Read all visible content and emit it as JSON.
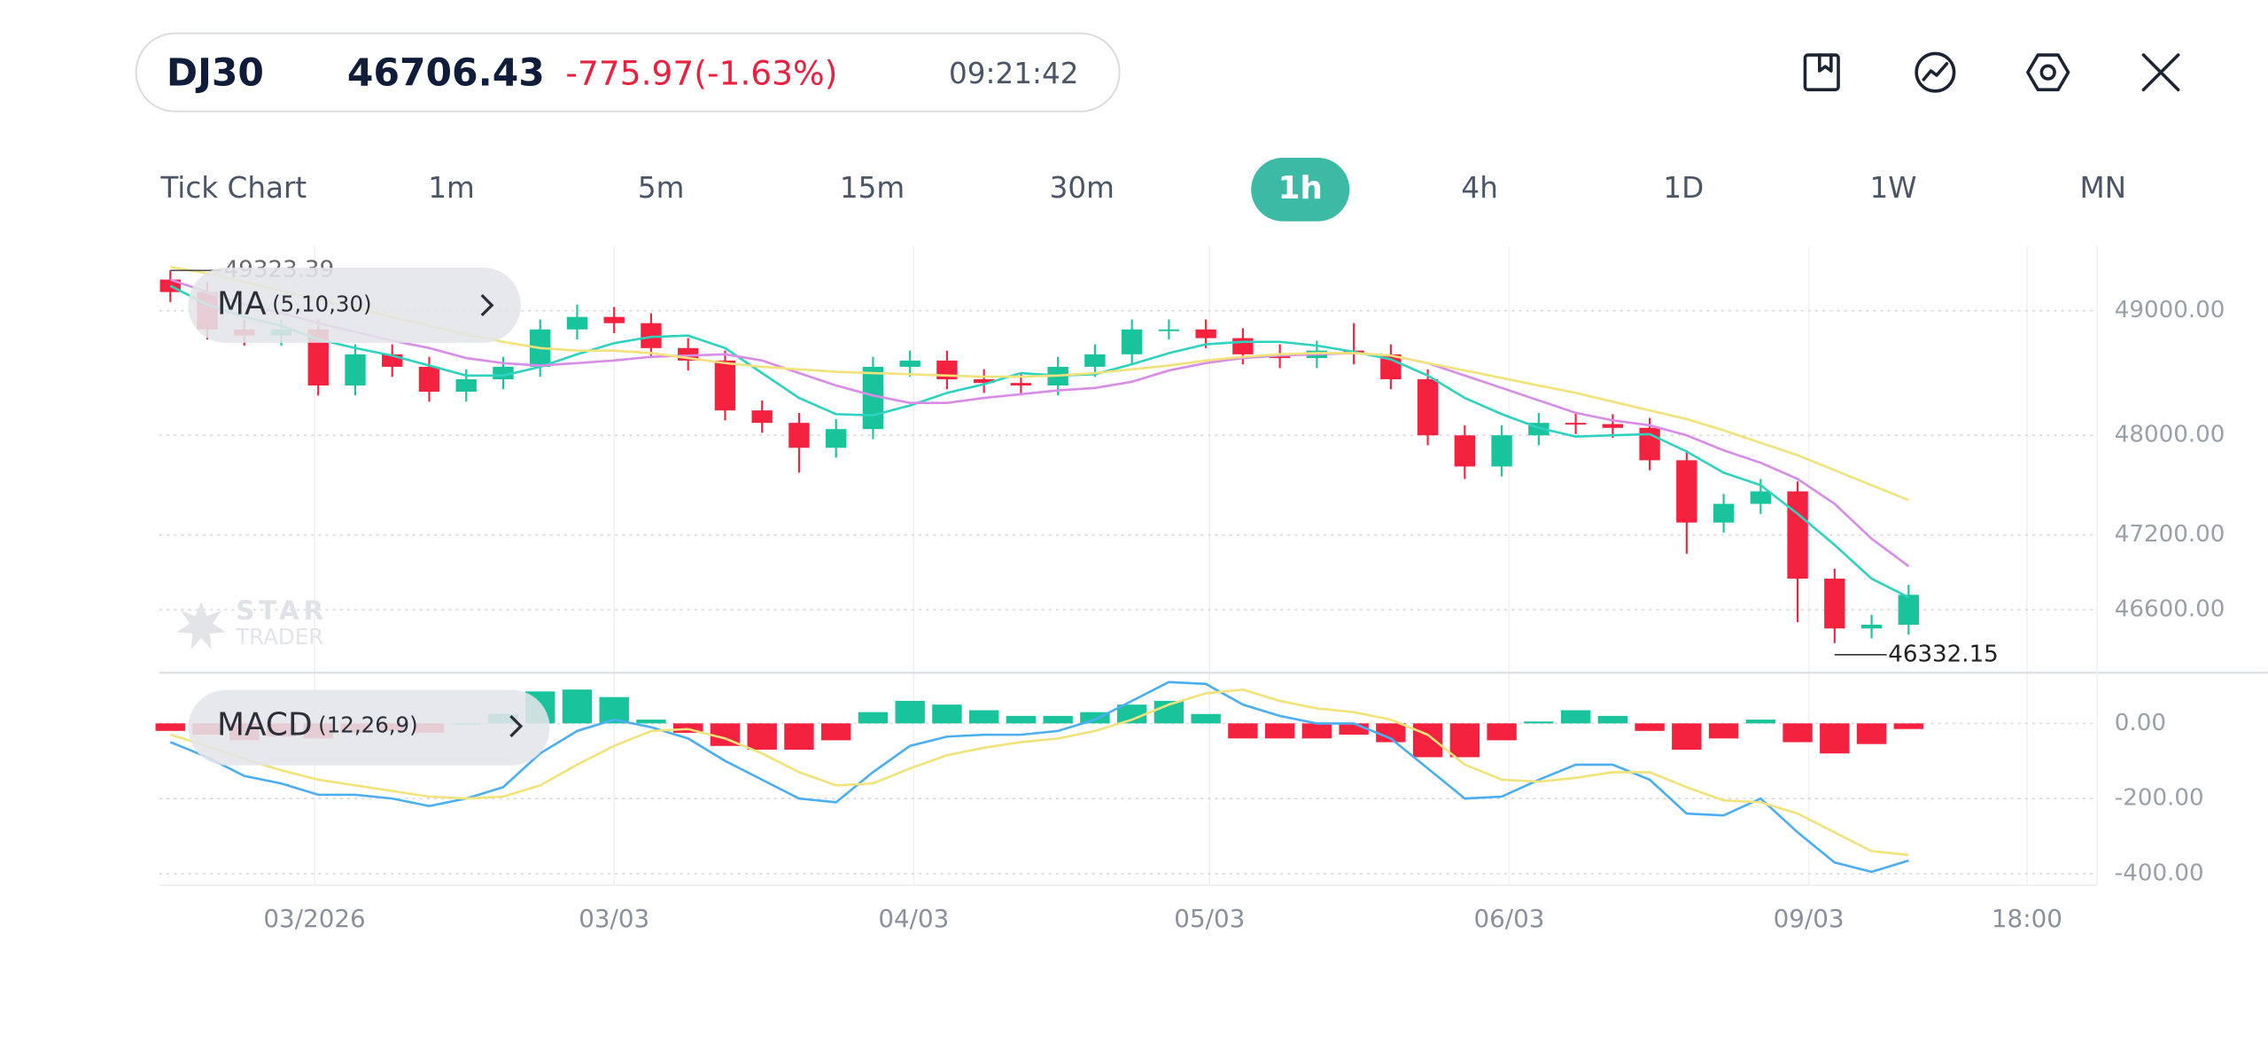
{
  "header": {
    "symbol": "DJ30",
    "price": "46706.43",
    "change": "-775.97(-1.63%)",
    "time": "09:21:42"
  },
  "timeframes": {
    "items": [
      "Tick Chart",
      "1m",
      "5m",
      "15m",
      "30m",
      "1h",
      "4h",
      "1D",
      "1W",
      "MN"
    ],
    "active": 5
  },
  "watermark": {
    "line1": "STAR",
    "line2": "TRADER"
  },
  "chart_data": [
    {
      "type": "candlestick",
      "indicator": {
        "name": "MA",
        "params": "(5,10,30)"
      },
      "up_color": "#19c39c",
      "down_color": "#f4213f",
      "grid": true,
      "open": [
        49250,
        49150,
        48850,
        48800,
        48850,
        48400,
        48650,
        48550,
        48350,
        48450,
        48550,
        48850,
        48950,
        48900,
        48700,
        48600,
        48200,
        48100,
        47900,
        48050,
        48550,
        48600,
        48450,
        48420,
        48400,
        48550,
        48650,
        48850,
        48850,
        48780,
        48650,
        48620,
        48680,
        48650,
        48450,
        48000,
        47750,
        48000,
        48100,
        48090,
        48060,
        47800,
        47300,
        47450,
        47550,
        46850,
        46450,
        46480
      ],
      "close": [
        49150,
        48850,
        48800,
        48850,
        48400,
        48650,
        48550,
        48350,
        48450,
        48550,
        48850,
        48950,
        48900,
        48700,
        48600,
        48200,
        48100,
        47900,
        48050,
        48550,
        48600,
        48450,
        48420,
        48400,
        48550,
        48650,
        48850,
        48850,
        48780,
        48650,
        48620,
        48680,
        48650,
        48450,
        48000,
        47750,
        48000,
        48100,
        48090,
        48060,
        47800,
        47300,
        47450,
        47550,
        46850,
        46450,
        46480,
        46720
      ],
      "high": [
        49323.39,
        49230,
        48930,
        48930,
        48930,
        48730,
        48730,
        48630,
        48530,
        48630,
        48930,
        49050,
        49030,
        48980,
        48780,
        48680,
        48280,
        48180,
        48130,
        48630,
        48680,
        48680,
        48530,
        48500,
        48630,
        48730,
        48930,
        48930,
        48930,
        48860,
        48730,
        48760,
        48900,
        48730,
        48530,
        48080,
        48080,
        48180,
        48180,
        48170,
        48140,
        47880,
        47530,
        47650,
        47630,
        46930,
        46560,
        46800
      ],
      "low": [
        49070,
        48770,
        48720,
        48720,
        48320,
        48320,
        48470,
        48270,
        48270,
        48370,
        48470,
        48770,
        48820,
        48620,
        48520,
        48120,
        48020,
        47700,
        47820,
        47970,
        48470,
        48370,
        48340,
        48320,
        48320,
        48470,
        48570,
        48770,
        48700,
        48570,
        48540,
        48540,
        48570,
        48370,
        47920,
        47650,
        47670,
        47920,
        48010,
        47980,
        47720,
        47050,
        47220,
        47370,
        46500,
        46332.15,
        46370,
        46400
      ],
      "ma": [
        {
          "color": "#2ed3c0",
          "values": [
            49200,
            49050,
            48950,
            48880,
            48770,
            48700,
            48640,
            48560,
            48480,
            48480,
            48550,
            48650,
            48740,
            48790,
            48800,
            48700,
            48500,
            48300,
            48170,
            48160,
            48240,
            48340,
            48410,
            48500,
            48480,
            48490,
            48570,
            48660,
            48730,
            48750,
            48750,
            48720,
            48670,
            48610,
            48480,
            48300,
            48170,
            48060,
            47990,
            48000,
            48010,
            47870,
            47700,
            47600,
            47370,
            47120,
            46850,
            46700
          ]
        },
        {
          "color": "#d98be8",
          "values": [
            49250,
            49150,
            49050,
            48980,
            48900,
            48830,
            48760,
            48700,
            48620,
            48580,
            48560,
            48580,
            48600,
            48630,
            48640,
            48650,
            48600,
            48500,
            48400,
            48320,
            48260,
            48260,
            48300,
            48330,
            48360,
            48380,
            48430,
            48520,
            48580,
            48620,
            48640,
            48650,
            48660,
            48640,
            48580,
            48480,
            48380,
            48280,
            48180,
            48120,
            48080,
            48000,
            47880,
            47780,
            47650,
            47450,
            47170,
            46950
          ]
        },
        {
          "color": "#f1e27a",
          "values": [
            49350,
            49300,
            49230,
            49160,
            49090,
            49020,
            48950,
            48880,
            48810,
            48750,
            48700,
            48680,
            48680,
            48660,
            48620,
            48580,
            48550,
            48530,
            48510,
            48500,
            48490,
            48480,
            48470,
            48470,
            48480,
            48500,
            48530,
            48560,
            48600,
            48630,
            48650,
            48660,
            48660,
            48640,
            48580,
            48520,
            48460,
            48400,
            48340,
            48270,
            48200,
            48130,
            48040,
            47940,
            47840,
            47720,
            47600,
            47480
          ]
        }
      ],
      "ylim": [
        46130,
        49520
      ],
      "yticks": [
        {
          "value": 49000,
          "label": "49000.00"
        },
        {
          "value": 48000,
          "label": "48000.00"
        },
        {
          "value": 47200,
          "label": "47200.00"
        },
        {
          "value": 46600,
          "label": "46600.00"
        }
      ],
      "xlim": [
        -0.3,
        52.1
      ],
      "xticks": [
        {
          "value": 3.9,
          "label": "03/2026"
        },
        {
          "value": 12,
          "label": "03/03"
        },
        {
          "value": 20.1,
          "label": "04/03"
        },
        {
          "value": 28.1,
          "label": "05/03"
        },
        {
          "value": 36.2,
          "label": "06/03"
        },
        {
          "value": 44.3,
          "label": "09/03"
        },
        {
          "value": 50.2,
          "label": "18:00"
        }
      ]
    },
    {
      "type": "macd",
      "indicator": {
        "name": "MACD",
        "params": "(12,26,9)"
      },
      "up_color": "#19c39c",
      "down_color": "#f4213f",
      "grid": true,
      "macd": {
        "color": "#4aaef0",
        "values": [
          -50,
          -90,
          -140,
          -160,
          -190,
          -190,
          -200,
          -220,
          -200,
          -170,
          -80,
          -20,
          10,
          -10,
          -40,
          -100,
          -150,
          -200,
          -210,
          -130,
          -60,
          -35,
          -30,
          -30,
          -20,
          10,
          60,
          110,
          105,
          50,
          20,
          0,
          0,
          -40,
          -120,
          -200,
          -195,
          -150,
          -110,
          -110,
          -150,
          -240,
          -245,
          -200,
          -290,
          -370,
          -395,
          -365
        ]
      },
      "signal": {
        "color": "#f1e27a",
        "values": [
          -30,
          -60,
          -95,
          -125,
          -150,
          -165,
          -180,
          -195,
          -200,
          -195,
          -165,
          -110,
          -60,
          -20,
          -15,
          -40,
          -80,
          -130,
          -165,
          -160,
          -120,
          -85,
          -65,
          -50,
          -40,
          -20,
          10,
          50,
          80,
          90,
          60,
          40,
          30,
          10,
          -30,
          -110,
          -150,
          -155,
          -145,
          -130,
          -130,
          -170,
          -205,
          -210,
          -240,
          -290,
          -340,
          -350
        ]
      },
      "histogram": [
        -20,
        -30,
        -45,
        -35,
        -40,
        -25,
        -20,
        -25,
        0,
        25,
        85,
        90,
        70,
        10,
        -25,
        -60,
        -70,
        -70,
        -45,
        30,
        60,
        50,
        35,
        20,
        20,
        30,
        50,
        60,
        25,
        -40,
        -40,
        -40,
        -30,
        -50,
        -90,
        -90,
        -45,
        5,
        35,
        20,
        -20,
        -70,
        -40,
        10,
        -50,
        -80,
        -55,
        -15
      ],
      "ylim": [
        -431,
        135
      ],
      "yticks": [
        {
          "value": 0,
          "label": "0.00"
        },
        {
          "value": -200,
          "label": "-200.00"
        },
        {
          "value": -400,
          "label": "-400.00"
        }
      ]
    }
  ]
}
